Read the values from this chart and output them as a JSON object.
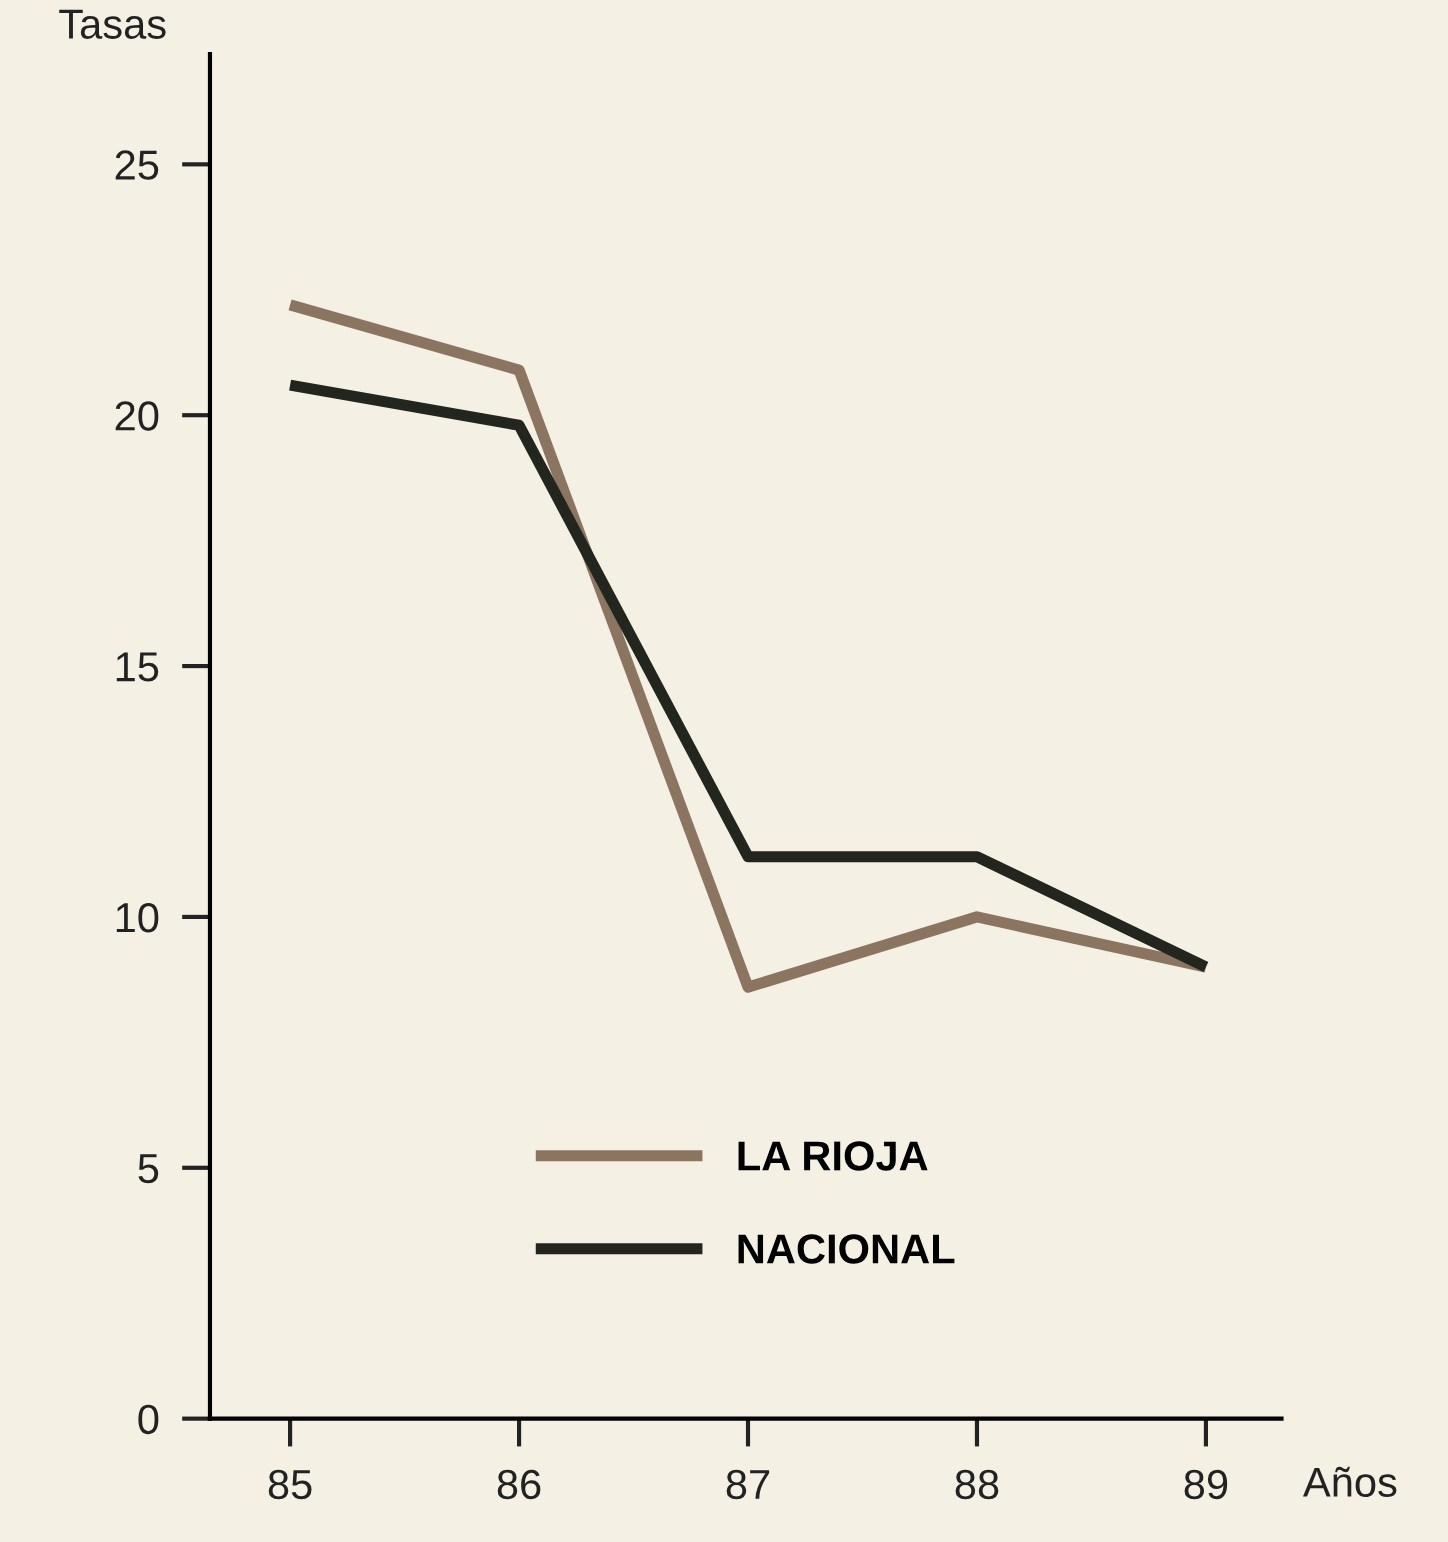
{
  "chart_data": {
    "type": "line",
    "xlabel": "Años",
    "ylabel": "Tasas",
    "x": [
      85,
      86,
      87,
      88,
      89
    ],
    "series": [
      {
        "name": "LA RIOJA",
        "color": "#8b7560",
        "values": [
          22.2,
          20.9,
          8.6,
          10.0,
          9.0
        ]
      },
      {
        "name": "NACIONAL",
        "color": "#22261f",
        "values": [
          20.6,
          19.8,
          11.2,
          11.2,
          9.0
        ]
      }
    ],
    "xlim": [
      84.65,
      89.33
    ],
    "xticks": [
      85,
      86,
      87,
      88,
      89
    ],
    "ylim": [
      0,
      27.2
    ],
    "yticks": [
      0,
      5,
      10,
      15,
      20,
      25
    ],
    "grid": false,
    "legend": "bottom",
    "marker": "none",
    "line_style": "solid"
  }
}
